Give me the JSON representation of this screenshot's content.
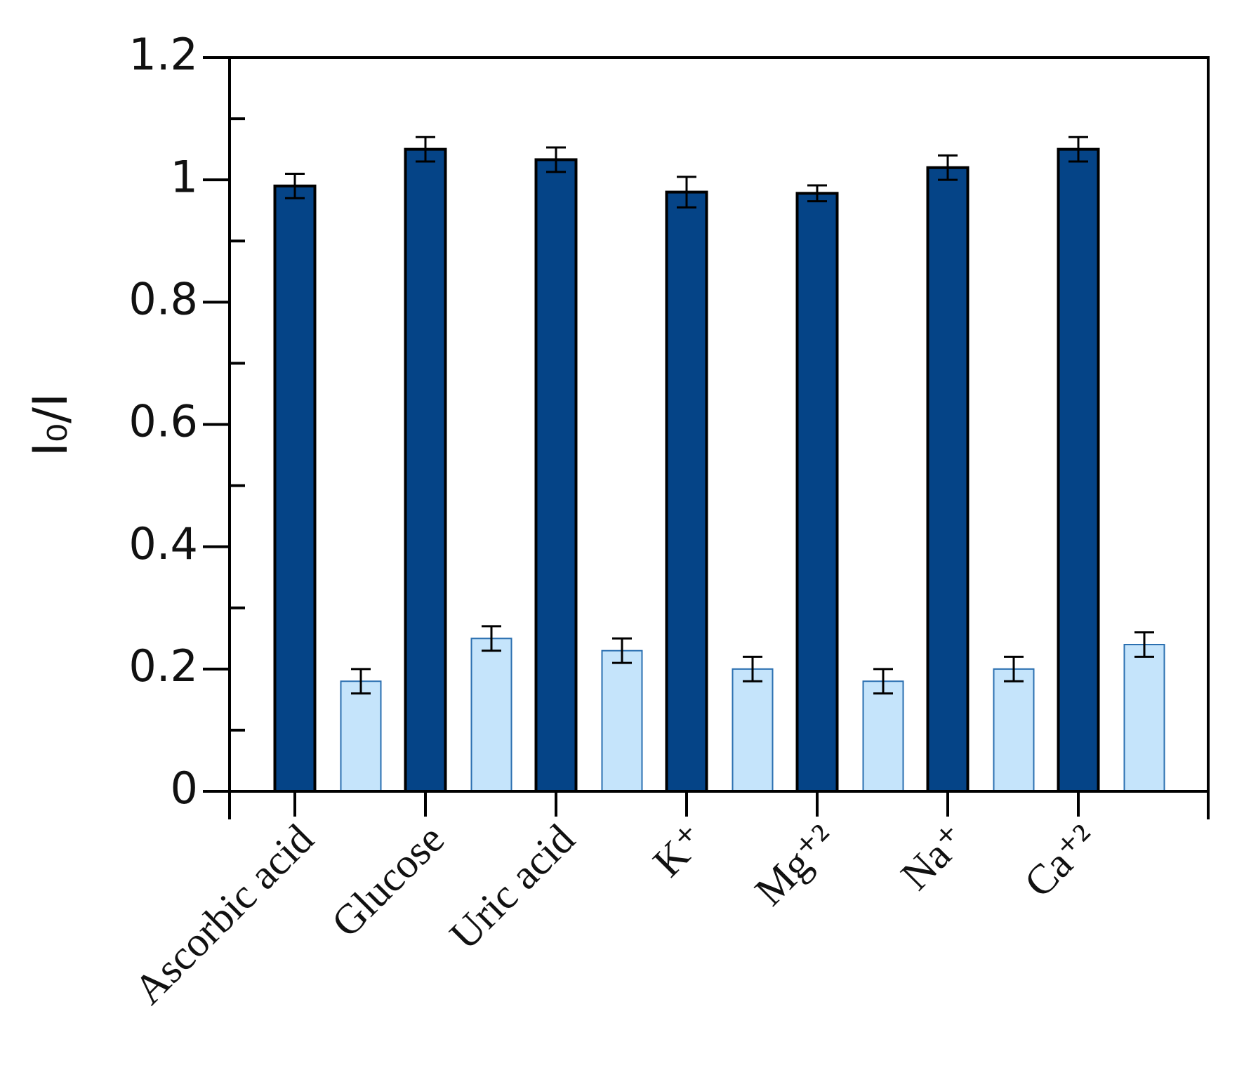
{
  "chart_data": {
    "type": "bar",
    "ylabel": "I₀/I",
    "categories": [
      "Ascorbic acid",
      "Glucose",
      "Uric acid",
      "K⁺",
      "Mg⁺²",
      "Na⁺",
      "Ca⁺²"
    ],
    "series": [
      {
        "color": "#054487",
        "values": [
          0.99,
          1.05,
          1.033,
          0.98,
          0.978,
          1.02,
          1.05
        ],
        "errors": [
          0.02,
          0.02,
          0.02,
          0.025,
          0.013,
          0.02,
          0.02
        ]
      },
      {
        "color": "#c5e4fb",
        "values": [
          0.18,
          0.25,
          0.23,
          0.2,
          0.18,
          0.2,
          0.24
        ],
        "errors": [
          0.02,
          0.02,
          0.02,
          0.02,
          0.02,
          0.02,
          0.02
        ]
      }
    ],
    "ylim": [
      0,
      1.2
    ],
    "yticks": [
      0,
      0.2,
      0.4,
      0.6,
      0.8,
      1,
      1.2
    ],
    "yminor_ticks": [
      0.1,
      0.3,
      0.5,
      0.7,
      0.9,
      1.1
    ]
  }
}
